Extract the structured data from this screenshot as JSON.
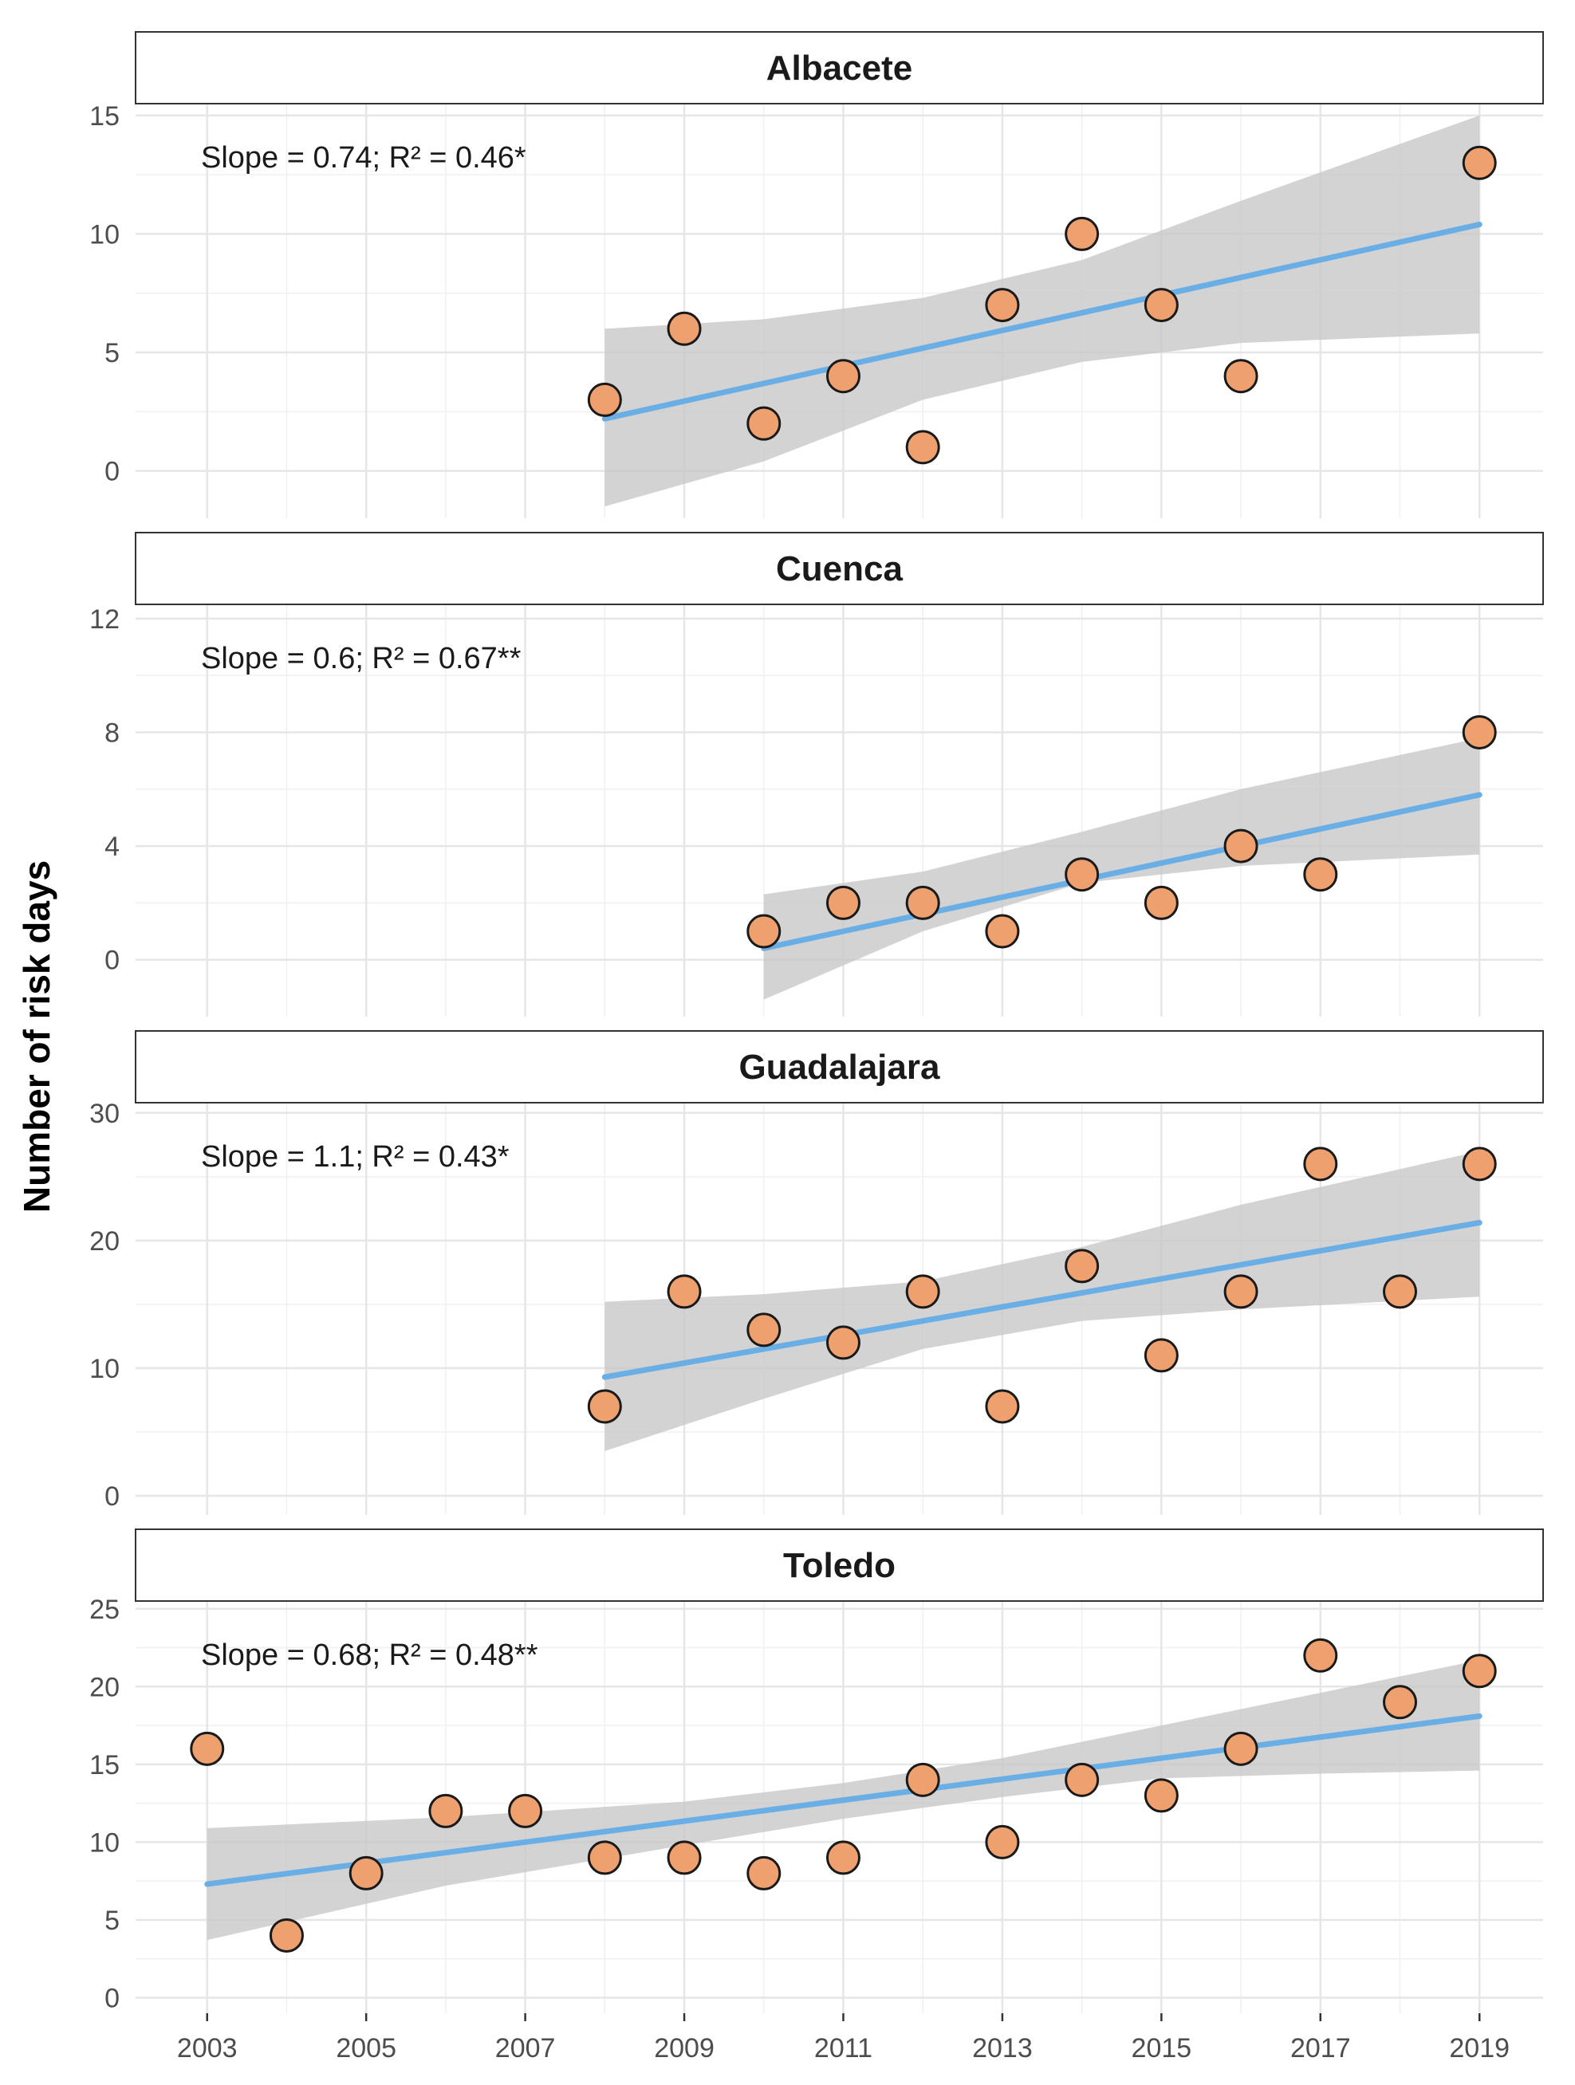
{
  "chart_data": {
    "type": "scatter",
    "ylabel": "Number of risk days",
    "x_ticks": [
      2003,
      2005,
      2007,
      2009,
      2011,
      2013,
      2015,
      2017,
      2019
    ],
    "xlim": [
      2002.1,
      2019.8
    ],
    "colors": {
      "point": "#eea06e",
      "line": "#6aaee6",
      "band": "#c8c8c8"
    },
    "panels": [
      {
        "title": "Albacete",
        "annotation": "Slope = 0.74; R² = 0.46*",
        "ylim": [
          -2,
          15.5
        ],
        "y_ticks": [
          0,
          5,
          10,
          15
        ],
        "x": [
          2008,
          2009,
          2010,
          2011,
          2012,
          2013,
          2014,
          2015,
          2016,
          2019
        ],
        "y": [
          3,
          6,
          2,
          4,
          1,
          7,
          10,
          7,
          4,
          13
        ],
        "fit": {
          "x0": 2008,
          "x1": 2019,
          "y0": 2.2,
          "y1": 10.4
        },
        "ci": [
          [
            2008,
            -1.5,
            6.0
          ],
          [
            2010,
            0.4,
            6.4
          ],
          [
            2012,
            3.0,
            7.3
          ],
          [
            2014,
            4.6,
            8.9
          ],
          [
            2016,
            5.4,
            11.4
          ],
          [
            2019,
            5.8,
            15.0
          ]
        ]
      },
      {
        "title": "Cuenca",
        "annotation": "Slope = 0.6; R² = 0.67**",
        "ylim": [
          -2,
          12.5
        ],
        "y_ticks": [
          0,
          4,
          8,
          12
        ],
        "x": [
          2010,
          2011,
          2012,
          2013,
          2014,
          2015,
          2016,
          2017,
          2019
        ],
        "y": [
          1,
          2,
          2,
          1,
          3,
          2,
          4,
          3,
          8
        ],
        "fit": {
          "x0": 2010,
          "x1": 2019,
          "y0": 0.4,
          "y1": 5.8
        },
        "ci": [
          [
            2010,
            -1.4,
            2.3
          ],
          [
            2012,
            1.0,
            3.1
          ],
          [
            2014,
            2.7,
            4.5
          ],
          [
            2016,
            3.3,
            6.0
          ],
          [
            2019,
            3.7,
            7.8
          ]
        ]
      },
      {
        "title": "Guadalajara",
        "annotation": "Slope = 1.1; R² = 0.43*",
        "ylim": [
          -1.5,
          30.8
        ],
        "y_ticks": [
          0,
          10,
          20,
          30
        ],
        "x": [
          2008,
          2009,
          2010,
          2011,
          2012,
          2013,
          2014,
          2015,
          2016,
          2017,
          2018,
          2019
        ],
        "y": [
          7,
          16,
          13,
          12,
          16,
          7,
          18,
          11,
          16,
          26,
          16,
          26
        ],
        "fit": {
          "x0": 2008,
          "x1": 2019,
          "y0": 9.3,
          "y1": 21.4
        },
        "ci": [
          [
            2008,
            3.5,
            15.2
          ],
          [
            2010,
            7.6,
            15.8
          ],
          [
            2012,
            11.5,
            16.8
          ],
          [
            2014,
            13.7,
            19.5
          ],
          [
            2016,
            14.6,
            22.8
          ],
          [
            2019,
            15.6,
            27.0
          ]
        ]
      },
      {
        "title": "Toledo",
        "annotation": "Slope = 0.68; R² = 0.48**",
        "ylim": [
          -1,
          25.5
        ],
        "y_ticks": [
          0,
          5,
          10,
          15,
          20,
          25
        ],
        "x": [
          2003,
          2004,
          2005,
          2006,
          2007,
          2008,
          2009,
          2010,
          2011,
          2012,
          2013,
          2014,
          2015,
          2016,
          2017,
          2018,
          2019
        ],
        "y": [
          16,
          4,
          8,
          12,
          12,
          9,
          9,
          8,
          9,
          14,
          10,
          14,
          13,
          16,
          22,
          19,
          21
        ],
        "fit": {
          "x0": 2003,
          "x1": 2019,
          "y0": 7.3,
          "y1": 18.1
        },
        "ci": [
          [
            2003,
            3.7,
            10.9
          ],
          [
            2006,
            7.2,
            11.6
          ],
          [
            2009,
            9.8,
            12.6
          ],
          [
            2011,
            11.5,
            13.8
          ],
          [
            2013,
            12.9,
            15.4
          ],
          [
            2015,
            14.1,
            17.5
          ],
          [
            2017,
            14.4,
            19.6
          ],
          [
            2019,
            14.6,
            21.7
          ]
        ]
      }
    ]
  }
}
